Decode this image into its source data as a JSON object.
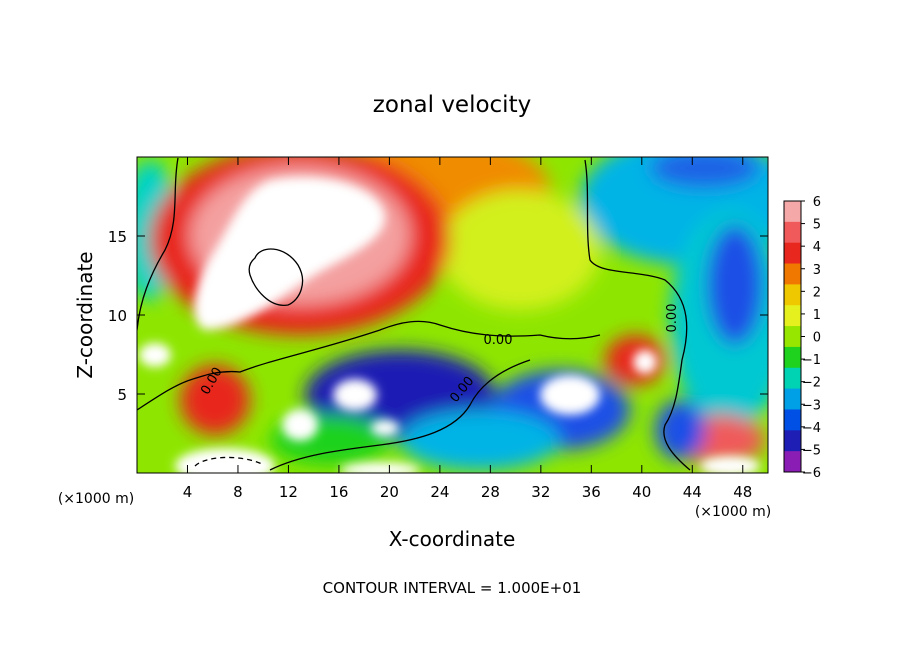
{
  "chart_data": {
    "type": "heatmap",
    "title": "zonal velocity",
    "xlabel": "X-coordinate",
    "ylabel": "Z-coordinate",
    "x_unit": "(×1000 m)",
    "y_unit": "(×1000 m)",
    "footer": "CONTOUR INTERVAL = 1.000E+01",
    "xlim": [
      0,
      50
    ],
    "ylim": [
      0,
      20
    ],
    "x_ticks": [
      4,
      8,
      12,
      16,
      20,
      24,
      28,
      32,
      36,
      40,
      44,
      48
    ],
    "y_ticks": [
      5,
      10,
      15
    ],
    "colorbar": {
      "levels": [
        6,
        5,
        4,
        3,
        2,
        1,
        0,
        -1,
        -2,
        -3,
        -4,
        -5,
        -6
      ],
      "colors": [
        "#f4a8a8",
        "#f05a5a",
        "#e8281e",
        "#f07800",
        "#f0c800",
        "#e6f01e",
        "#96e600",
        "#1ed21e",
        "#00d2b4",
        "#00a0e6",
        "#0050e6",
        "#1e1eb4",
        "#8a1eb4"
      ],
      "range": [
        -6,
        6
      ]
    },
    "contour_labels": [
      "0.00",
      "0.00",
      "0.00",
      "0.00",
      "0.00"
    ],
    "grid": false,
    "legend": "colorbar right"
  }
}
